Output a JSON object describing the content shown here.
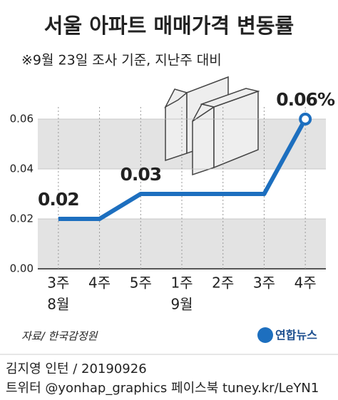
{
  "chart_data": {
    "type": "line",
    "title": "서울 아파트 매매가격 변동률",
    "subtitle": "※9월 23일 조사 기준, 지난주 대비",
    "categories": [
      "3주",
      "4주",
      "5주",
      "1주",
      "2주",
      "3주",
      "4주"
    ],
    "month_labels": [
      "8월",
      null,
      null,
      "9월",
      null,
      null,
      null
    ],
    "values": [
      0.02,
      0.02,
      0.03,
      0.03,
      0.03,
      0.03,
      0.06
    ],
    "value_labels": [
      "0.02",
      null,
      "0.03",
      null,
      null,
      null,
      "0.06%"
    ],
    "color": "#1d6fbf",
    "ylim": [
      0,
      0.06
    ],
    "yticks": [
      {
        "value": 0,
        "label": "0.00"
      },
      {
        "value": 0.02,
        "label": "0.02"
      },
      {
        "value": 0.04,
        "label": "0.04"
      },
      {
        "value": 0.06,
        "label": "0.06"
      }
    ],
    "source": "자료/ 한국감정원",
    "logo": "연합뉴스"
  },
  "footer": [
    "김지영 인턴 / 20190926",
    "트위터 @yonhap_graphics  페이스북 tuney.kr/LeYN1"
  ]
}
